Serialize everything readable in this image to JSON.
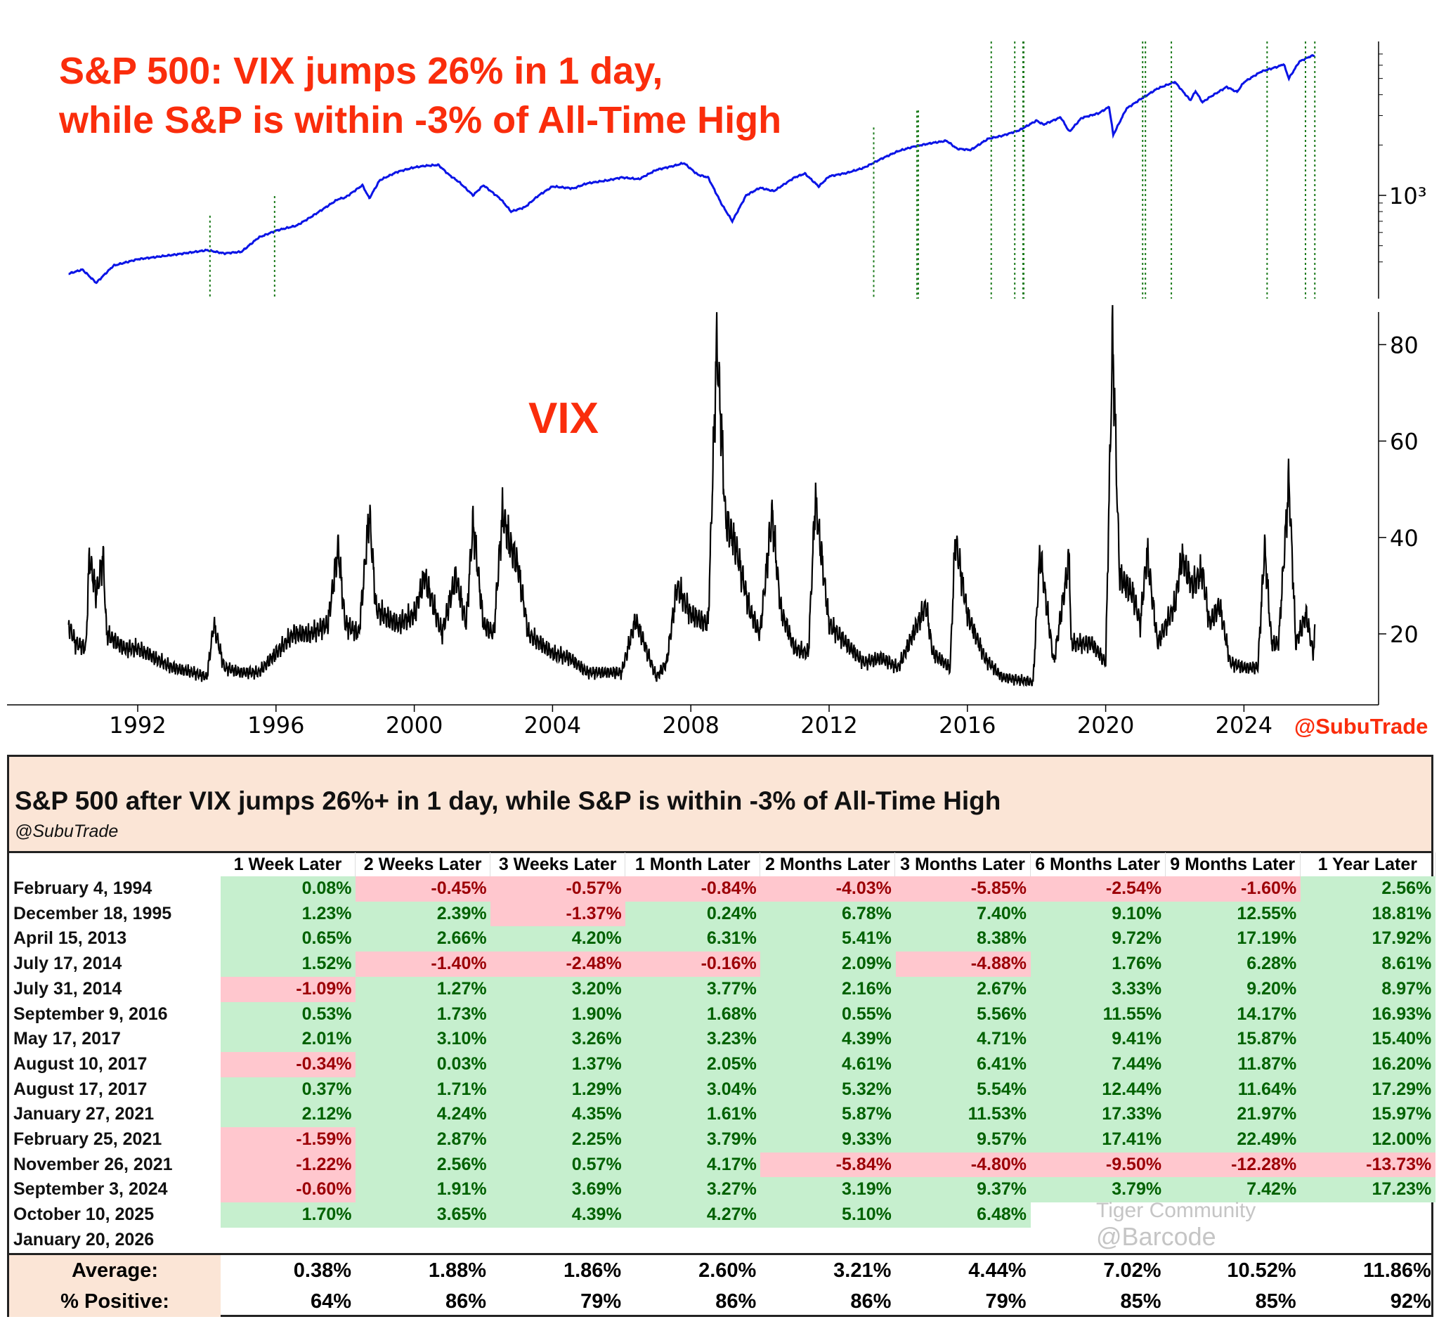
{
  "chart_title_line1": "S&P 500: VIX jumps 26% in 1 day,",
  "chart_title_line2": "while S&P is within -3% of All-Time High",
  "handle": "@SubuTrade",
  "watermark": {
    "line1": "Tiger Community",
    "line2": "@Barcode"
  },
  "colors": {
    "title_red": "#fa2d0c",
    "spx_line": "#0a14e6",
    "vix_line": "#000000",
    "event_line": "#1a7a1a",
    "pos_bg": "#c6efce",
    "pos_text": "#006100",
    "neg_bg": "#ffc7ce",
    "neg_text": "#9c0006",
    "header_bg": "#fbe5d6"
  },
  "chart_data": [
    {
      "type": "line",
      "name": "S&P 500",
      "yscale": "log",
      "ytick_labels": [
        "10³"
      ],
      "yticks": [
        1000
      ],
      "ylim": [
        290,
        7400
      ],
      "xlim": [
        1989.5,
        2026.6
      ],
      "points": [
        [
          1990.0,
          340
        ],
        [
          1990.4,
          360
        ],
        [
          1990.8,
          300
        ],
        [
          1991.0,
          330
        ],
        [
          1991.3,
          380
        ],
        [
          1992.0,
          415
        ],
        [
          1993.0,
          440
        ],
        [
          1994.0,
          470
        ],
        [
          1994.5,
          450
        ],
        [
          1995.0,
          460
        ],
        [
          1995.5,
          560
        ],
        [
          1996.0,
          615
        ],
        [
          1996.6,
          660
        ],
        [
          1997.0,
          740
        ],
        [
          1997.8,
          950
        ],
        [
          1998.0,
          970
        ],
        [
          1998.5,
          1150
        ],
        [
          1998.7,
          960
        ],
        [
          1999.0,
          1230
        ],
        [
          1999.5,
          1380
        ],
        [
          2000.0,
          1470
        ],
        [
          2000.3,
          1500
        ],
        [
          2000.7,
          1520
        ],
        [
          2001.0,
          1330
        ],
        [
          2001.3,
          1200
        ],
        [
          2001.7,
          1000
        ],
        [
          2002.0,
          1150
        ],
        [
          2002.5,
          950
        ],
        [
          2002.8,
          800
        ],
        [
          2003.2,
          850
        ],
        [
          2003.6,
          1000
        ],
        [
          2004.0,
          1130
        ],
        [
          2004.6,
          1100
        ],
        [
          2005.0,
          1180
        ],
        [
          2005.6,
          1230
        ],
        [
          2006.0,
          1280
        ],
        [
          2006.5,
          1250
        ],
        [
          2007.0,
          1420
        ],
        [
          2007.5,
          1500
        ],
        [
          2007.8,
          1560
        ],
        [
          2008.2,
          1330
        ],
        [
          2008.5,
          1280
        ],
        [
          2008.9,
          880
        ],
        [
          2009.2,
          700
        ],
        [
          2009.6,
          1000
        ],
        [
          2010.0,
          1110
        ],
        [
          2010.4,
          1060
        ],
        [
          2011.0,
          1280
        ],
        [
          2011.3,
          1350
        ],
        [
          2011.7,
          1130
        ],
        [
          2012.0,
          1300
        ],
        [
          2012.5,
          1360
        ],
        [
          2013.0,
          1460
        ],
        [
          2013.5,
          1650
        ],
        [
          2014.0,
          1840
        ],
        [
          2014.5,
          1970
        ],
        [
          2015.0,
          2060
        ],
        [
          2015.4,
          2120
        ],
        [
          2015.7,
          1900
        ],
        [
          2016.1,
          1870
        ],
        [
          2016.6,
          2180
        ],
        [
          2017.0,
          2270
        ],
        [
          2017.5,
          2450
        ],
        [
          2018.0,
          2800
        ],
        [
          2018.2,
          2650
        ],
        [
          2018.7,
          2930
        ],
        [
          2018.95,
          2400
        ],
        [
          2019.3,
          2900
        ],
        [
          2019.8,
          3100
        ],
        [
          2020.1,
          3380
        ],
        [
          2020.22,
          2300
        ],
        [
          2020.6,
          3300
        ],
        [
          2021.0,
          3750
        ],
        [
          2021.5,
          4350
        ],
        [
          2022.0,
          4770
        ],
        [
          2022.45,
          3700
        ],
        [
          2022.6,
          4200
        ],
        [
          2022.8,
          3600
        ],
        [
          2023.0,
          3850
        ],
        [
          2023.5,
          4450
        ],
        [
          2023.8,
          4150
        ],
        [
          2024.0,
          4750
        ],
        [
          2024.5,
          5500
        ],
        [
          2025.0,
          5900
        ],
        [
          2025.15,
          6100
        ],
        [
          2025.3,
          5000
        ],
        [
          2025.6,
          6300
        ],
        [
          2025.9,
          6750
        ],
        [
          2026.05,
          6900
        ]
      ],
      "event_dates": [
        1994.09,
        1995.96,
        2013.29,
        2014.54,
        2014.58,
        2016.69,
        2017.37,
        2017.61,
        2017.63,
        2021.07,
        2021.15,
        2021.9,
        2024.67,
        2025.78,
        2026.05
      ]
    },
    {
      "type": "line",
      "name": "VIX",
      "label": "VIX",
      "yticks": [
        20,
        40,
        60,
        80
      ],
      "ylim": [
        7,
        86
      ],
      "xticks": [
        1992,
        1996,
        2000,
        2004,
        2008,
        2012,
        2016,
        2020,
        2024
      ],
      "xlim": [
        1989.5,
        2026.6
      ],
      "points": [
        [
          1990.0,
          22
        ],
        [
          1990.2,
          18
        ],
        [
          1990.5,
          17
        ],
        [
          1990.6,
          36
        ],
        [
          1990.8,
          28
        ],
        [
          1991.0,
          36
        ],
        [
          1991.1,
          20
        ],
        [
          1991.6,
          17
        ],
        [
          1992.0,
          17
        ],
        [
          1992.5,
          15
        ],
        [
          1993.0,
          13
        ],
        [
          1993.6,
          12
        ],
        [
          1994.0,
          11
        ],
        [
          1994.2,
          22
        ],
        [
          1994.5,
          13
        ],
        [
          1995.0,
          12
        ],
        [
          1995.5,
          12
        ],
        [
          1996.0,
          16
        ],
        [
          1996.5,
          20
        ],
        [
          1997.0,
          20
        ],
        [
          1997.5,
          22
        ],
        [
          1997.8,
          38
        ],
        [
          1998.0,
          22
        ],
        [
          1998.4,
          20
        ],
        [
          1998.7,
          45
        ],
        [
          1998.9,
          25
        ],
        [
          1999.5,
          22
        ],
        [
          2000.0,
          24
        ],
        [
          2000.3,
          32
        ],
        [
          2000.8,
          20
        ],
        [
          2001.2,
          32
        ],
        [
          2001.5,
          22
        ],
        [
          2001.7,
          43
        ],
        [
          2002.0,
          22
        ],
        [
          2002.3,
          20
        ],
        [
          2002.55,
          45
        ],
        [
          2002.8,
          38
        ],
        [
          2003.0,
          34
        ],
        [
          2003.3,
          20
        ],
        [
          2004.0,
          16
        ],
        [
          2004.5,
          15
        ],
        [
          2005.0,
          12
        ],
        [
          2005.5,
          12
        ],
        [
          2006.0,
          12
        ],
        [
          2006.4,
          23
        ],
        [
          2007.0,
          11
        ],
        [
          2007.3,
          14
        ],
        [
          2007.6,
          30
        ],
        [
          2008.0,
          24
        ],
        [
          2008.5,
          22
        ],
        [
          2008.75,
          80
        ],
        [
          2008.9,
          60
        ],
        [
          2009.0,
          44
        ],
        [
          2009.3,
          38
        ],
        [
          2009.7,
          25
        ],
        [
          2010.0,
          20
        ],
        [
          2010.35,
          45
        ],
        [
          2010.6,
          25
        ],
        [
          2011.0,
          17
        ],
        [
          2011.4,
          16
        ],
        [
          2011.6,
          48
        ],
        [
          2011.8,
          35
        ],
        [
          2012.0,
          22
        ],
        [
          2012.5,
          18
        ],
        [
          2013.0,
          14
        ],
        [
          2013.5,
          15
        ],
        [
          2014.0,
          13
        ],
        [
          2014.8,
          26
        ],
        [
          2015.0,
          16
        ],
        [
          2015.5,
          13
        ],
        [
          2015.65,
          40
        ],
        [
          2016.0,
          24
        ],
        [
          2016.5,
          15
        ],
        [
          2017.0,
          11
        ],
        [
          2017.9,
          10
        ],
        [
          2018.1,
          37
        ],
        [
          2018.5,
          14
        ],
        [
          2018.95,
          36
        ],
        [
          2019.0,
          18
        ],
        [
          2019.6,
          18
        ],
        [
          2020.0,
          14
        ],
        [
          2020.2,
          82
        ],
        [
          2020.4,
          32
        ],
        [
          2020.8,
          28
        ],
        [
          2021.0,
          22
        ],
        [
          2021.2,
          37
        ],
        [
          2021.5,
          18
        ],
        [
          2022.0,
          26
        ],
        [
          2022.2,
          36
        ],
        [
          2022.5,
          30
        ],
        [
          2022.8,
          33
        ],
        [
          2023.0,
          22
        ],
        [
          2023.3,
          26
        ],
        [
          2023.6,
          14
        ],
        [
          2024.0,
          13
        ],
        [
          2024.4,
          13
        ],
        [
          2024.6,
          38
        ],
        [
          2024.8,
          18
        ],
        [
          2025.0,
          18
        ],
        [
          2025.3,
          52
        ],
        [
          2025.5,
          18
        ],
        [
          2025.8,
          24
        ],
        [
          2026.0,
          16
        ],
        [
          2026.05,
          20
        ]
      ]
    }
  ],
  "table": {
    "title": "S&P 500 after VIX jumps 26%+ in 1 day, while S&P is within -3% of All-Time High",
    "subtitle": "@SubuTrade",
    "columns": [
      "1 Week Later",
      "2 Weeks Later",
      "3 Weeks Later",
      "1 Month Later",
      "2 Months Later",
      "3 Months Later",
      "6 Months Later",
      "9 Months Later",
      "1 Year Later"
    ],
    "rows": [
      {
        "date": "February 4, 1994",
        "values": [
          "0.08%",
          "-0.45%",
          "-0.57%",
          "-0.84%",
          "-4.03%",
          "-5.85%",
          "-2.54%",
          "-1.60%",
          "2.56%"
        ]
      },
      {
        "date": "December 18, 1995",
        "values": [
          "1.23%",
          "2.39%",
          "-1.37%",
          "0.24%",
          "6.78%",
          "7.40%",
          "9.10%",
          "12.55%",
          "18.81%"
        ]
      },
      {
        "date": "April 15, 2013",
        "values": [
          "0.65%",
          "2.66%",
          "4.20%",
          "6.31%",
          "5.41%",
          "8.38%",
          "9.72%",
          "17.19%",
          "17.92%"
        ]
      },
      {
        "date": "July 17, 2014",
        "values": [
          "1.52%",
          "-1.40%",
          "-2.48%",
          "-0.16%",
          "2.09%",
          "-4.88%",
          "1.76%",
          "6.28%",
          "8.61%"
        ]
      },
      {
        "date": "July 31, 2014",
        "values": [
          "-1.09%",
          "1.27%",
          "3.20%",
          "3.77%",
          "2.16%",
          "2.67%",
          "3.33%",
          "9.20%",
          "8.97%"
        ]
      },
      {
        "date": "September 9, 2016",
        "values": [
          "0.53%",
          "1.73%",
          "1.90%",
          "1.68%",
          "0.55%",
          "5.56%",
          "11.55%",
          "14.17%",
          "16.93%"
        ]
      },
      {
        "date": "May 17, 2017",
        "values": [
          "2.01%",
          "3.10%",
          "3.26%",
          "3.23%",
          "4.39%",
          "4.71%",
          "9.41%",
          "15.87%",
          "15.40%"
        ]
      },
      {
        "date": "August 10, 2017",
        "values": [
          "-0.34%",
          "0.03%",
          "1.37%",
          "2.05%",
          "4.61%",
          "6.41%",
          "7.44%",
          "11.87%",
          "16.20%"
        ]
      },
      {
        "date": "August 17, 2017",
        "values": [
          "0.37%",
          "1.71%",
          "1.29%",
          "3.04%",
          "5.32%",
          "5.54%",
          "12.44%",
          "11.64%",
          "17.29%"
        ]
      },
      {
        "date": "January 27, 2021",
        "values": [
          "2.12%",
          "4.24%",
          "4.35%",
          "1.61%",
          "5.87%",
          "11.53%",
          "17.33%",
          "21.97%",
          "15.97%"
        ]
      },
      {
        "date": "February 25, 2021",
        "values": [
          "-1.59%",
          "2.87%",
          "2.25%",
          "3.79%",
          "9.33%",
          "9.57%",
          "17.41%",
          "22.49%",
          "12.00%"
        ]
      },
      {
        "date": "November 26, 2021",
        "values": [
          "-1.22%",
          "2.56%",
          "0.57%",
          "4.17%",
          "-5.84%",
          "-4.80%",
          "-9.50%",
          "-12.28%",
          "-13.73%"
        ]
      },
      {
        "date": "September 3, 2024",
        "values": [
          "-0.60%",
          "1.91%",
          "3.69%",
          "3.27%",
          "3.19%",
          "9.37%",
          "3.79%",
          "7.42%",
          "17.23%"
        ]
      },
      {
        "date": "October 10, 2025",
        "values": [
          "1.70%",
          "3.65%",
          "4.39%",
          "4.27%",
          "5.10%",
          "6.48%",
          null,
          null,
          null
        ]
      },
      {
        "date": "January 20, 2026",
        "values": [
          null,
          null,
          null,
          null,
          null,
          null,
          null,
          null,
          null
        ]
      }
    ],
    "summary": [
      {
        "label": "Average:",
        "values": [
          "0.38%",
          "1.88%",
          "1.86%",
          "2.60%",
          "3.21%",
          "4.44%",
          "7.02%",
          "10.52%",
          "11.86%"
        ]
      },
      {
        "label": "% Positive:",
        "values": [
          "64%",
          "86%",
          "79%",
          "86%",
          "86%",
          "79%",
          "85%",
          "85%",
          "92%"
        ]
      }
    ]
  }
}
